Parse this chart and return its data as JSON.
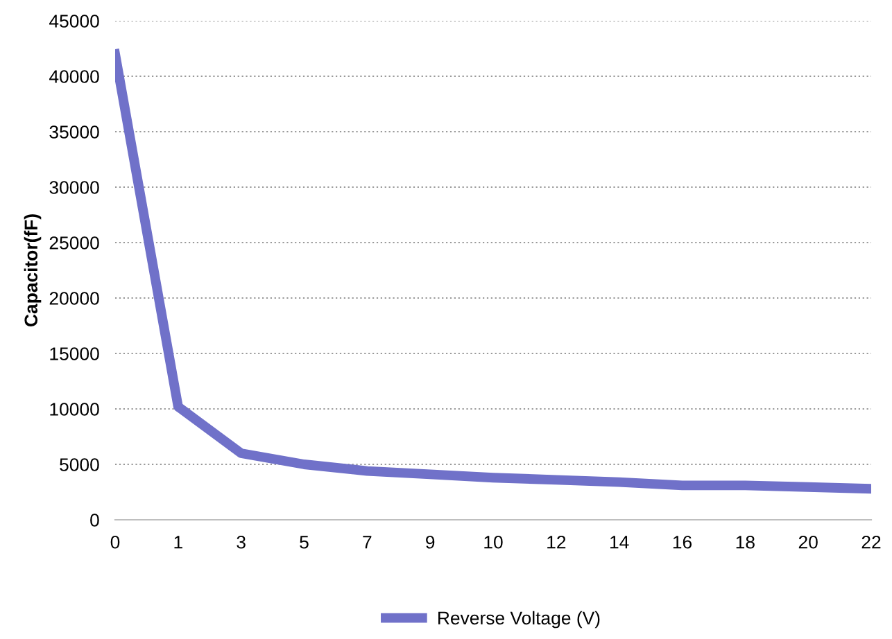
{
  "chart_data": {
    "type": "line",
    "ylabel": "Capacitor(fF)",
    "categories": [
      "0",
      "1",
      "3",
      "5",
      "7",
      "9",
      "10",
      "12",
      "14",
      "16",
      "18",
      "20",
      "22"
    ],
    "series": [
      {
        "name": "Reverse Voltage (V)",
        "color": "#7071c9",
        "values": [
          42000,
          10200,
          6000,
          5000,
          4400,
          4100,
          3800,
          3600,
          3400,
          3100,
          3100,
          2950,
          2800
        ]
      }
    ],
    "ylim": [
      0,
      45000
    ],
    "yticks": [
      0,
      5000,
      10000,
      15000,
      20000,
      25000,
      30000,
      35000,
      40000,
      45000
    ],
    "grid": "y",
    "legend": "bottom",
    "marker": "none",
    "line_style": "solid"
  }
}
